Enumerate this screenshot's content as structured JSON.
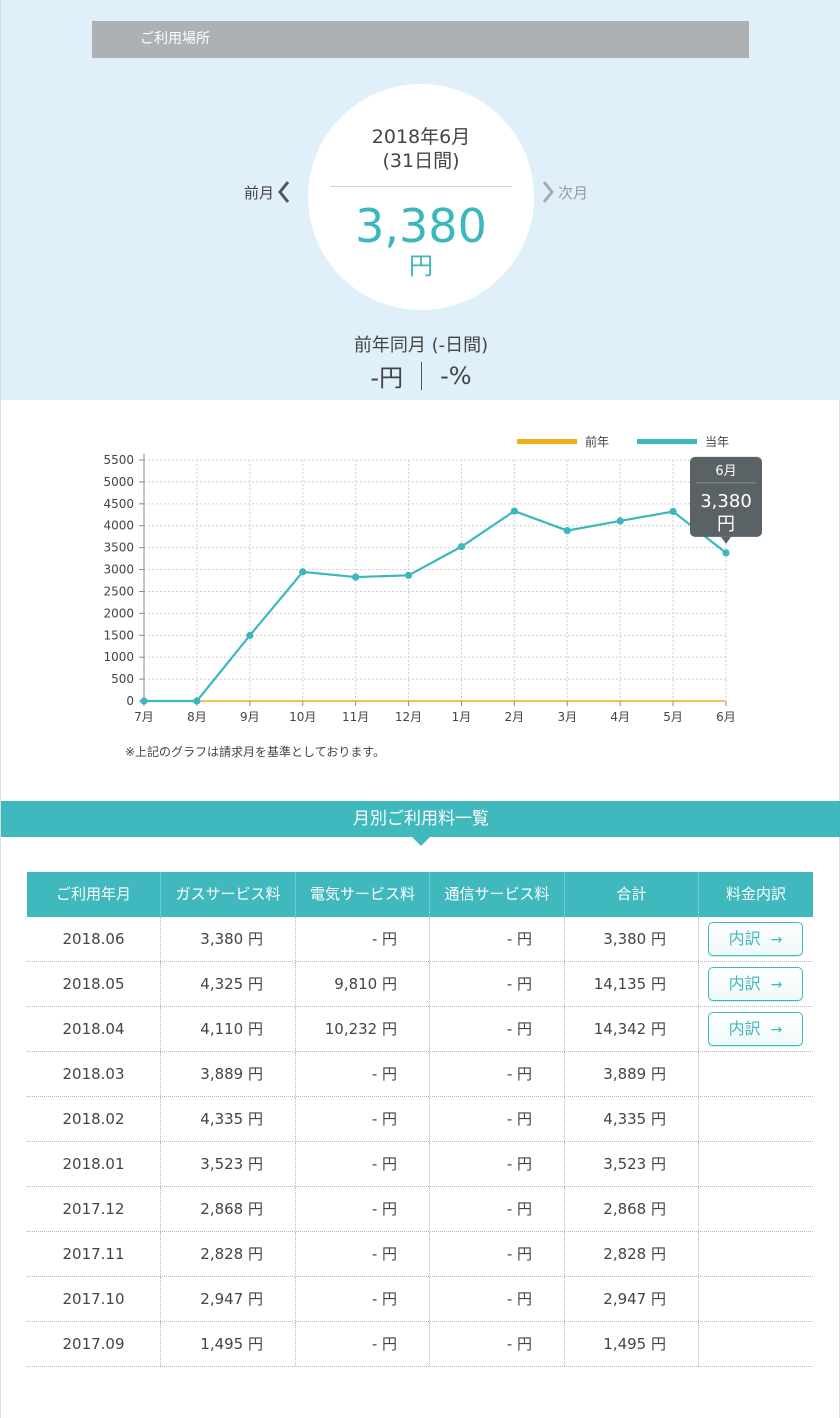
{
  "header": {
    "location_label": "ご利用場所"
  },
  "summary": {
    "month": "2018年6月",
    "days": "(31日間)",
    "amount": "3,380",
    "unit": "円",
    "prev_label": "前月",
    "next_label": "次月",
    "compare_label": "前年同月 (-日間)",
    "compare_yen": "-円",
    "compare_pct": "-%"
  },
  "colors": {
    "accent": "#3bb7bd",
    "previous_year": "#f0ae1e",
    "current_year": "#3bb7bd",
    "tooltip": "#5a6265"
  },
  "chart_data": {
    "type": "line",
    "categories": [
      "7月",
      "8月",
      "9月",
      "10月",
      "11月",
      "12月",
      "1月",
      "2月",
      "3月",
      "4月",
      "5月",
      "6月"
    ],
    "series": [
      {
        "name": "前年",
        "values": [
          0,
          0,
          0,
          0,
          0,
          0,
          0,
          0,
          0,
          0,
          0,
          0
        ]
      },
      {
        "name": "当年",
        "values": [
          0,
          0,
          1495,
          2947,
          2828,
          2868,
          3523,
          4335,
          3889,
          4110,
          4325,
          3380
        ]
      }
    ],
    "ylim": [
      0,
      5500
    ],
    "y_ticks": [
      0,
      500,
      1000,
      1500,
      2000,
      2500,
      3000,
      3500,
      4000,
      4500,
      5000,
      5500
    ],
    "grid": true,
    "legend_position": "top-right",
    "tooltip": {
      "month": "6月",
      "value": "3,380",
      "unit": "円"
    }
  },
  "note": "※上記のグラフは請求月を基準としております。",
  "table": {
    "section_title": "月別ご利用料一覧",
    "headers": [
      "ご利用年月",
      "ガスサービス料",
      "電気サービス料",
      "通信サービス料",
      "合計",
      "料金内訳"
    ],
    "detail_label": "内訳",
    "rows": [
      {
        "month": "2018.06",
        "gas": "3,380 円",
        "electric": "- 円",
        "telecom": "- 円",
        "total": "3,380 円",
        "detail": true
      },
      {
        "month": "2018.05",
        "gas": "4,325 円",
        "electric": "9,810 円",
        "telecom": "- 円",
        "total": "14,135 円",
        "detail": true
      },
      {
        "month": "2018.04",
        "gas": "4,110 円",
        "electric": "10,232 円",
        "telecom": "- 円",
        "total": "14,342 円",
        "detail": true
      },
      {
        "month": "2018.03",
        "gas": "3,889 円",
        "electric": "- 円",
        "telecom": "- 円",
        "total": "3,889 円",
        "detail": false
      },
      {
        "month": "2018.02",
        "gas": "4,335 円",
        "electric": "- 円",
        "telecom": "- 円",
        "total": "4,335 円",
        "detail": false
      },
      {
        "month": "2018.01",
        "gas": "3,523 円",
        "electric": "- 円",
        "telecom": "- 円",
        "total": "3,523 円",
        "detail": false
      },
      {
        "month": "2017.12",
        "gas": "2,868 円",
        "electric": "- 円",
        "telecom": "- 円",
        "total": "2,868 円",
        "detail": false
      },
      {
        "month": "2017.11",
        "gas": "2,828 円",
        "electric": "- 円",
        "telecom": "- 円",
        "total": "2,828 円",
        "detail": false
      },
      {
        "month": "2017.10",
        "gas": "2,947 円",
        "electric": "- 円",
        "telecom": "- 円",
        "total": "2,947 円",
        "detail": false
      },
      {
        "month": "2017.09",
        "gas": "1,495 円",
        "electric": "- 円",
        "telecom": "- 円",
        "total": "1,495 円",
        "detail": false
      }
    ]
  }
}
